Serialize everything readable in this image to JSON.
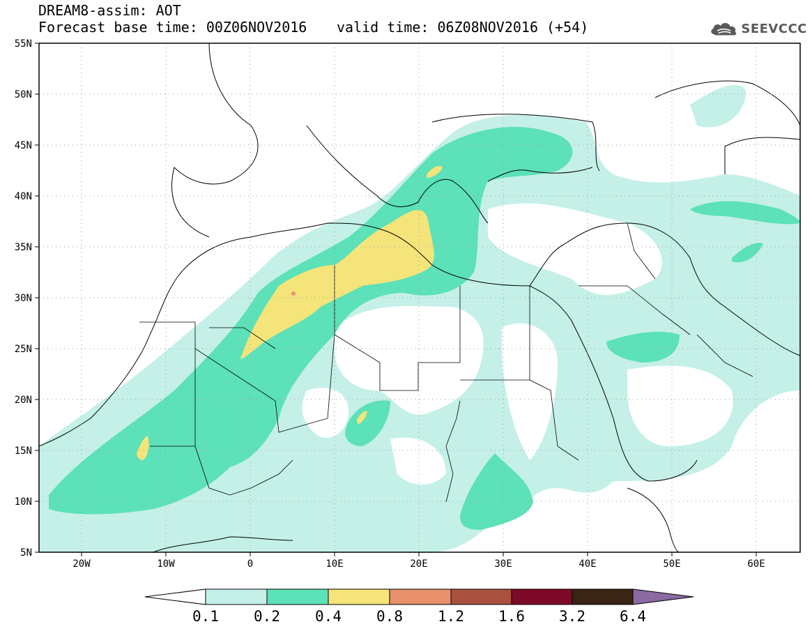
{
  "title": {
    "line1": "DREAM8-assim: AOT",
    "line2": "Forecast base time: 00Z06NOV2016",
    "valid": "valid time: 06Z08NOV2016 (+54)"
  },
  "logo": {
    "icon": "cloud-icon",
    "text": "SEEVCCC"
  },
  "map": {
    "lon_range": [
      -25,
      65
    ],
    "lat_range": [
      5,
      55
    ],
    "lat_labels": [
      "55N",
      "50N",
      "45N",
      "40N",
      "35N",
      "30N",
      "25N",
      "20N",
      "15N",
      "10N",
      "5N"
    ],
    "lon_labels": [
      "20W",
      "10W",
      "0",
      "10E",
      "20E",
      "30E",
      "40E",
      "50E",
      "60E"
    ],
    "grid": "dotted"
  },
  "colorbar": {
    "labels": [
      "0.1",
      "0.2",
      "0.4",
      "0.8",
      "1.2",
      "1.6",
      "3.2",
      "6.4"
    ],
    "colors": [
      "#ffffff",
      "#c4f0e8",
      "#5ce1b8",
      "#f5e47a",
      "#e8916c",
      "#a9503f",
      "#7e0a2a",
      "#3a2414",
      "#8a6aa0"
    ]
  },
  "colors": {
    "level1": "#c4f0e8",
    "level2": "#5ce1b8",
    "level3": "#f5e47a",
    "level4": "#e8916c"
  }
}
